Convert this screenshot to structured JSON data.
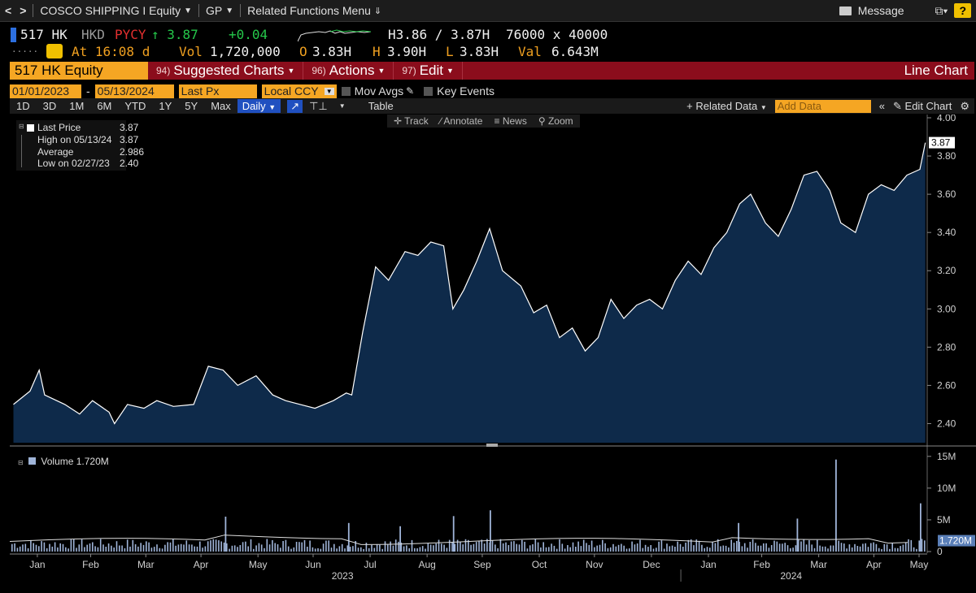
{
  "topbar": {
    "back": "<",
    "forward": ">",
    "security": "COSCO SHIPPING I Equity",
    "function": "GP",
    "menu": "Related Functions Menu",
    "message": "Message",
    "help": "?"
  },
  "quote": {
    "ticker": "517 HK",
    "ccy": "HKD",
    "pcs": "PYCY",
    "last": "↑ 3.87",
    "change": "+0.04",
    "bid_ask": "H3.86 / 3.87H",
    "size": "76000 x 40000",
    "time": "At 16:08 d",
    "vol_label": "Vol",
    "vol": "1,720,000",
    "open_label": "O",
    "open": "3.83H",
    "high_label": "H",
    "high": "3.90H",
    "low_label": "L",
    "low": "3.83H",
    "val_label": "Val",
    "val": "6.643M"
  },
  "titlebar": {
    "security": "517 HK Equity",
    "suggested_num": "94)",
    "suggested": "Suggested Charts",
    "actions_num": "96)",
    "actions": "Actions",
    "edit_num": "97)",
    "edit": "Edit",
    "chart_type": "Line Chart"
  },
  "params": {
    "start": "01/01/2023",
    "dash": "-",
    "end": "05/13/2024",
    "field": "Last Px",
    "ccy": "Local CCY",
    "mov_avgs": "Mov Avgs",
    "key_events": "Key Events"
  },
  "ranges": {
    "items": [
      "1D",
      "3D",
      "1M",
      "6M",
      "YTD",
      "1Y",
      "5Y",
      "Max"
    ],
    "period": "Daily",
    "table": "Table",
    "related": "+ Related Data",
    "add_data_placeholder": "Add Data",
    "edit_chart": "Edit Chart"
  },
  "tools": {
    "track": "Track",
    "annotate": "Annotate",
    "news": "News",
    "zoom": "Zoom"
  },
  "legend": {
    "last_label": "Last Price",
    "last_val": "3.87",
    "high_label": "High on 05/13/24",
    "high_val": "3.87",
    "avg_label": "Average",
    "avg_val": "2.986",
    "low_label": "Low on 02/27/23",
    "low_val": "2.40"
  },
  "volume_legend": "Volume 1.720M",
  "colors": {
    "background": "#000000",
    "price_line": "#ffffff",
    "price_fill": "#0e2a4a",
    "volume_bar": "#9fb4d8",
    "accent_orange": "#f5a623",
    "title_red": "#8b0d1c",
    "last_tag": "#ffffff"
  },
  "chart_data": {
    "type": "area",
    "price": {
      "series_name": "Last Price",
      "ylim": [
        2.3,
        4.0
      ],
      "yticks": [
        "4.00",
        "3.80",
        "3.60",
        "3.40",
        "3.20",
        "3.00",
        "2.80",
        "2.60",
        "2.40"
      ],
      "y_tick_values": [
        4.0,
        3.8,
        3.6,
        3.4,
        3.2,
        3.0,
        2.8,
        2.6,
        2.4
      ],
      "last_tag": "3.87",
      "x": [
        "2023-01-03",
        "2023-01-12",
        "2023-01-17",
        "2023-01-20",
        "2023-01-31",
        "2023-02-08",
        "2023-02-15",
        "2023-02-24",
        "2023-02-27",
        "2023-03-06",
        "2023-03-15",
        "2023-03-22",
        "2023-03-31",
        "2023-04-11",
        "2023-04-19",
        "2023-04-27",
        "2023-05-05",
        "2023-05-15",
        "2023-05-24",
        "2023-05-31",
        "2023-06-08",
        "2023-06-16",
        "2023-06-26",
        "2023-07-03",
        "2023-07-06",
        "2023-07-12",
        "2023-07-19",
        "2023-07-26",
        "2023-08-04",
        "2023-08-11",
        "2023-08-18",
        "2023-08-25",
        "2023-08-30",
        "2023-09-05",
        "2023-09-12",
        "2023-09-19",
        "2023-09-26",
        "2023-10-06",
        "2023-10-13",
        "2023-10-20",
        "2023-10-27",
        "2023-11-03",
        "2023-11-10",
        "2023-11-17",
        "2023-11-24",
        "2023-12-01",
        "2023-12-08",
        "2023-12-15",
        "2023-12-22",
        "2023-12-29",
        "2024-01-05",
        "2024-01-12",
        "2024-01-19",
        "2024-01-26",
        "2024-02-02",
        "2024-02-08",
        "2024-02-16",
        "2024-02-23",
        "2024-03-01",
        "2024-03-08",
        "2024-03-15",
        "2024-03-22",
        "2024-03-28",
        "2024-04-05",
        "2024-04-12",
        "2024-04-19",
        "2024-04-26",
        "2024-05-03",
        "2024-05-10",
        "2024-05-13"
      ],
      "values": [
        2.5,
        2.57,
        2.68,
        2.55,
        2.5,
        2.45,
        2.52,
        2.46,
        2.4,
        2.5,
        2.48,
        2.52,
        2.49,
        2.5,
        2.7,
        2.68,
        2.6,
        2.65,
        2.55,
        2.52,
        2.5,
        2.48,
        2.52,
        2.56,
        2.55,
        2.88,
        3.22,
        3.15,
        3.3,
        3.28,
        3.35,
        3.33,
        3.0,
        3.1,
        3.25,
        3.42,
        3.2,
        3.12,
        2.98,
        3.02,
        2.85,
        2.9,
        2.78,
        2.85,
        3.05,
        2.95,
        3.02,
        3.05,
        3.0,
        3.15,
        3.25,
        3.18,
        3.32,
        3.4,
        3.55,
        3.6,
        3.45,
        3.38,
        3.52,
        3.7,
        3.72,
        3.62,
        3.45,
        3.4,
        3.6,
        3.65,
        3.62,
        3.7,
        3.73,
        3.87
      ]
    },
    "volume": {
      "series_name": "Volume",
      "ylim": [
        0,
        16
      ],
      "unit": "M",
      "yticks": [
        "15M",
        "10M",
        "5M",
        "0"
      ],
      "y_tick_values": [
        15,
        10,
        5,
        0
      ],
      "last_tag": "1.720M",
      "spikes": [
        {
          "date": "2023-04-28",
          "value": 5.5
        },
        {
          "date": "2023-07-04",
          "value": 4.5
        },
        {
          "date": "2023-08-01",
          "value": 4.0
        },
        {
          "date": "2023-08-30",
          "value": 5.6
        },
        {
          "date": "2023-09-19",
          "value": 6.5
        },
        {
          "date": "2024-02-01",
          "value": 4.5
        },
        {
          "date": "2024-03-04",
          "value": 5.2
        },
        {
          "date": "2024-03-25",
          "value": 14.5
        },
        {
          "date": "2024-05-10",
          "value": 7.6
        }
      ]
    },
    "x_axis": {
      "months": [
        "Jan",
        "Feb",
        "Mar",
        "Apr",
        "May",
        "Jun",
        "Jul",
        "Aug",
        "Sep",
        "Oct",
        "Nov",
        "Dec",
        "Jan",
        "Feb",
        "Mar",
        "Apr",
        "May"
      ],
      "years": [
        "2023",
        "2024"
      ]
    }
  }
}
